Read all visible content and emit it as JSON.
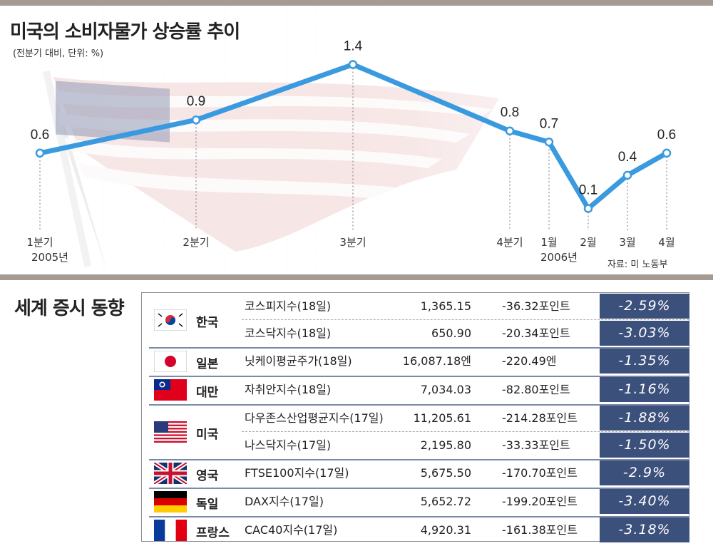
{
  "title": "미국의 소비자물가 상승률 추이",
  "subtitle": "(전분기 대비, 단위: %)",
  "source": "자료: 미 노동부",
  "chart_data": {
    "type": "line",
    "categories": [
      "1분기 2005년",
      "2분기",
      "3분기",
      "4분기",
      "1월 2006년",
      "2월",
      "3월",
      "4월"
    ],
    "x_labels": [
      {
        "line1": "1분기",
        "line2": "2005년"
      },
      {
        "line1": "2분기",
        "line2": ""
      },
      {
        "line1": "3분기",
        "line2": ""
      },
      {
        "line1": "4분기",
        "line2": ""
      },
      {
        "line1": "1월",
        "line2": "2006년"
      },
      {
        "line1": "2월",
        "line2": ""
      },
      {
        "line1": "3월",
        "line2": ""
      },
      {
        "line1": "4월",
        "line2": ""
      }
    ],
    "values": [
      0.6,
      0.9,
      1.4,
      0.8,
      0.7,
      0.1,
      0.4,
      0.6
    ],
    "value_labels": [
      "0.6",
      "0.9",
      "1.4",
      "0.8",
      "0.7",
      "0.1",
      "0.4",
      "0.6"
    ],
    "ylim": [
      0,
      1.5
    ],
    "line_color": "#3a9ae0",
    "grid": false
  },
  "markets": {
    "title": "세계 증시 동향",
    "groups": [
      {
        "country": "한국",
        "flag": "korea",
        "rows": [
          {
            "index": "코스피지수(18일)",
            "close": "1,365.15",
            "change": "-36.32포인트",
            "pct": "-2.59%"
          },
          {
            "index": "코스닥지수(18일)",
            "close": "650.90",
            "change": "-20.34포인트",
            "pct": "-3.03%"
          }
        ]
      },
      {
        "country": "일본",
        "flag": "japan",
        "rows": [
          {
            "index": "닛케이평균주가(18일)",
            "close": "16,087.18엔",
            "change": "-220.49엔",
            "pct": "-1.35%"
          }
        ]
      },
      {
        "country": "대만",
        "flag": "taiwan",
        "rows": [
          {
            "index": "자취안지수(18일)",
            "close": "7,034.03",
            "change": "-82.80포인트",
            "pct": "-1.16%"
          }
        ]
      },
      {
        "country": "미국",
        "flag": "usa",
        "rows": [
          {
            "index": "다우존스산업평균지수(17일)",
            "close": "11,205.61",
            "change": "-214.28포인트",
            "pct": "-1.88%"
          },
          {
            "index": "나스닥지수(17일)",
            "close": "2,195.80",
            "change": "-33.33포인트",
            "pct": "-1.50%"
          }
        ]
      },
      {
        "country": "영국",
        "flag": "uk",
        "rows": [
          {
            "index": "FTSE100지수(17일)",
            "close": "5,675.50",
            "change": "-170.70포인트",
            "pct": "-2.9%"
          }
        ]
      },
      {
        "country": "독일",
        "flag": "germany",
        "rows": [
          {
            "index": "DAX지수(17일)",
            "close": "5,652.72",
            "change": "-199.20포인트",
            "pct": "-3.40%"
          }
        ]
      },
      {
        "country": "프랑스",
        "flag": "france",
        "rows": [
          {
            "index": "CAC40지수(17일)",
            "close": "4,920.31",
            "change": "-161.38포인트",
            "pct": "-3.18%"
          }
        ]
      }
    ]
  }
}
